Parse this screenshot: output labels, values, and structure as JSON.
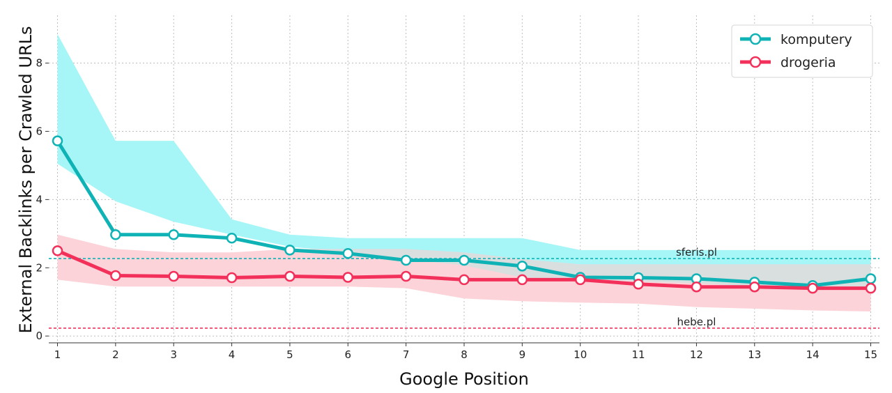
{
  "chart_data": {
    "type": "line",
    "title": "",
    "xlabel": "Google Position",
    "ylabel": "External Backlinks per Crawled URLs",
    "x": [
      1,
      2,
      3,
      4,
      5,
      6,
      7,
      8,
      9,
      10,
      11,
      12,
      13,
      14,
      15
    ],
    "x_tick_labels": [
      "1",
      "2",
      "3",
      "4",
      "5",
      "6",
      "7",
      "8",
      "9",
      "10",
      "11",
      "12",
      "13",
      "14",
      "15"
    ],
    "xlim": [
      0.85,
      15.15
    ],
    "ylim": [
      -0.2,
      9.4
    ],
    "y_ticks": [
      0,
      2,
      4,
      6,
      8
    ],
    "grid": true,
    "legend_position": "top-right",
    "series": [
      {
        "name": "komputery",
        "color": "#0fb3b5",
        "band_color": "#a6f6f8",
        "values": [
          5.72,
          2.97,
          2.97,
          2.87,
          2.52,
          2.42,
          2.22,
          2.22,
          2.05,
          1.72,
          1.71,
          1.68,
          1.58,
          1.48,
          1.68
        ],
        "band_upper": [
          8.85,
          5.72,
          5.72,
          3.42,
          2.97,
          2.87,
          2.87,
          2.87,
          2.87,
          2.52,
          2.52,
          2.52,
          2.52,
          2.52,
          2.52
        ],
        "band_lower": [
          5.05,
          3.95,
          3.35,
          2.97,
          2.62,
          2.45,
          2.25,
          2.07,
          1.72,
          1.65,
          1.6,
          1.55,
          1.45,
          1.42,
          1.45
        ]
      },
      {
        "name": "drogeria",
        "color": "#f2305a",
        "band_color": "#fcd3d8",
        "values": [
          2.5,
          1.77,
          1.75,
          1.71,
          1.75,
          1.72,
          1.75,
          1.65,
          1.65,
          1.65,
          1.52,
          1.44,
          1.44,
          1.4,
          1.4
        ],
        "band_upper": [
          2.97,
          2.55,
          2.45,
          2.45,
          2.55,
          2.55,
          2.55,
          2.45,
          2.25,
          2.1,
          2.1,
          2.1,
          2.1,
          2.1,
          2.1
        ],
        "band_lower": [
          1.65,
          1.45,
          1.45,
          1.45,
          1.45,
          1.45,
          1.4,
          1.1,
          1.02,
          0.98,
          0.95,
          0.85,
          0.8,
          0.75,
          0.72
        ]
      }
    ],
    "reference_lines": [
      {
        "label": "sferis.pl",
        "y": 2.27,
        "color": "#0fb3b5"
      },
      {
        "label": "hebe.pl",
        "y": 0.23,
        "color": "#f2305a"
      }
    ],
    "overlap_color": "#d9dedf"
  }
}
